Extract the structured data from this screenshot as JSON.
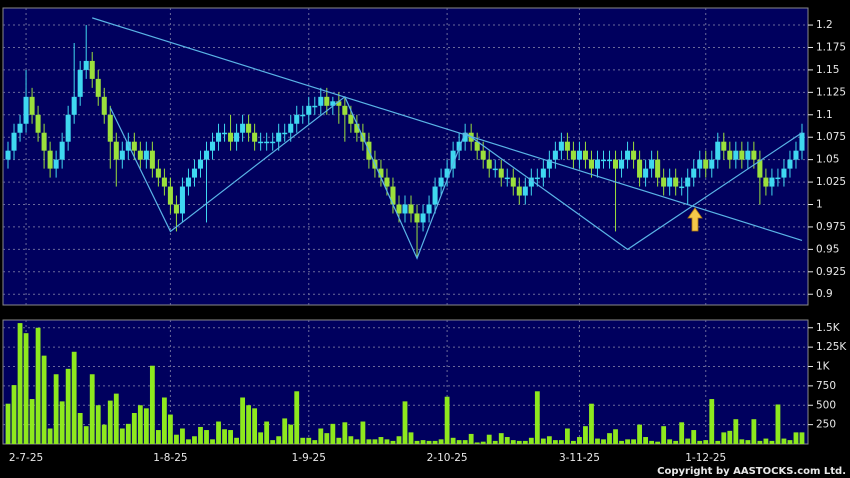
{
  "chart_data": [
    {
      "type": "candlestick",
      "up_color": "#3fd8f0",
      "down_color": "#9be03c",
      "grid": true,
      "ylim": [
        0.888,
        1.219
      ],
      "yticks": [
        0.9,
        0.925,
        0.95,
        0.975,
        1,
        1.025,
        1.05,
        1.075,
        1.1,
        1.125,
        1.15,
        1.175,
        1.2
      ],
      "open": [
        1.05,
        1.06,
        1.08,
        1.09,
        1.12,
        1.1,
        1.08,
        1.06,
        1.04,
        1.05,
        1.07,
        1.1,
        1.12,
        1.15,
        1.16,
        1.14,
        1.12,
        1.1,
        1.07,
        1.05,
        1.06,
        1.07,
        1.06,
        1.05,
        1.06,
        1.04,
        1.03,
        1.02,
        1.0,
        0.99,
        1.02,
        1.03,
        1.04,
        1.05,
        1.06,
        1.07,
        1.08,
        1.08,
        1.07,
        1.08,
        1.09,
        1.08,
        1.07,
        1.07,
        1.07,
        1.07,
        1.08,
        1.08,
        1.09,
        1.1,
        1.1,
        1.11,
        1.11,
        1.12,
        1.11,
        1.115,
        1.11,
        1.1,
        1.09,
        1.08,
        1.07,
        1.05,
        1.04,
        1.03,
        1.02,
        1.0,
        0.99,
        1.0,
        0.99,
        0.98,
        0.99,
        1.0,
        1.02,
        1.03,
        1.04,
        1.06,
        1.07,
        1.08,
        1.07,
        1.06,
        1.05,
        1.04,
        1.04,
        1.03,
        1.03,
        1.02,
        1.01,
        1.02,
        1.03,
        1.03,
        1.04,
        1.05,
        1.06,
        1.07,
        1.06,
        1.05,
        1.06,
        1.05,
        1.04,
        1.05,
        1.05,
        1.05,
        1.04,
        1.05,
        1.06,
        1.05,
        1.03,
        1.04,
        1.05,
        1.03,
        1.02,
        1.03,
        1.02,
        1.02,
        1.03,
        1.04,
        1.05,
        1.04,
        1.05,
        1.07,
        1.06,
        1.05,
        1.06,
        1.05,
        1.06,
        1.05,
        1.03,
        1.02,
        1.03,
        1.03,
        1.04,
        1.05,
        1.06
      ],
      "high": [
        1.07,
        1.09,
        1.1,
        1.15,
        1.13,
        1.11,
        1.09,
        1.07,
        1.06,
        1.08,
        1.11,
        1.18,
        1.16,
        1.2,
        1.17,
        1.15,
        1.13,
        1.11,
        1.08,
        1.07,
        1.08,
        1.08,
        1.07,
        1.07,
        1.07,
        1.05,
        1.04,
        1.03,
        1.01,
        1.03,
        1.04,
        1.05,
        1.06,
        1.07,
        1.08,
        1.09,
        1.09,
        1.1,
        1.09,
        1.1,
        1.1,
        1.09,
        1.08,
        1.08,
        1.08,
        1.09,
        1.09,
        1.1,
        1.11,
        1.11,
        1.12,
        1.12,
        1.13,
        1.13,
        1.12,
        1.125,
        1.12,
        1.11,
        1.1,
        1.09,
        1.08,
        1.06,
        1.05,
        1.04,
        1.03,
        1.01,
        1.01,
        1.01,
        1.0,
        1.0,
        1.01,
        1.03,
        1.04,
        1.05,
        1.07,
        1.08,
        1.09,
        1.09,
        1.08,
        1.07,
        1.06,
        1.05,
        1.05,
        1.04,
        1.04,
        1.03,
        1.03,
        1.04,
        1.04,
        1.05,
        1.06,
        1.07,
        1.08,
        1.08,
        1.07,
        1.07,
        1.07,
        1.06,
        1.06,
        1.06,
        1.06,
        1.06,
        1.06,
        1.07,
        1.07,
        1.06,
        1.05,
        1.06,
        1.06,
        1.04,
        1.04,
        1.04,
        1.03,
        1.04,
        1.05,
        1.06,
        1.06,
        1.06,
        1.08,
        1.08,
        1.07,
        1.07,
        1.07,
        1.07,
        1.07,
        1.06,
        1.04,
        1.04,
        1.04,
        1.05,
        1.06,
        1.07,
        1.09
      ],
      "low": [
        1.04,
        1.05,
        1.07,
        1.08,
        1.09,
        1.07,
        1.04,
        1.03,
        1.03,
        1.04,
        1.06,
        1.09,
        1.11,
        1.14,
        1.13,
        1.11,
        1.09,
        1.04,
        1.02,
        1.04,
        1.05,
        1.05,
        1.04,
        1.04,
        1.03,
        1.02,
        1.01,
        0.99,
        0.97,
        0.98,
        1.01,
        1.02,
        1.03,
        0.98,
        1.05,
        1.06,
        1.07,
        1.06,
        1.06,
        1.07,
        1.07,
        1.06,
        1.06,
        1.06,
        1.06,
        1.06,
        1.07,
        1.07,
        1.08,
        1.09,
        1.09,
        1.1,
        1.1,
        1.1,
        1.1,
        1.09,
        1.07,
        1.08,
        1.07,
        1.06,
        1.04,
        1.03,
        1.02,
        1.01,
        0.99,
        0.98,
        0.98,
        0.98,
        0.94,
        0.97,
        0.98,
        0.99,
        1.01,
        1.02,
        1.03,
        1.05,
        1.06,
        1.06,
        1.05,
        1.04,
        1.03,
        1.03,
        1.02,
        1.02,
        1.01,
        1.0,
        1.0,
        1.01,
        1.02,
        1.02,
        1.03,
        1.04,
        1.05,
        1.05,
        1.04,
        1.04,
        1.04,
        1.03,
        1.03,
        1.04,
        1.04,
        0.97,
        1.03,
        1.04,
        1.04,
        1.02,
        1.02,
        1.03,
        1.02,
        1.01,
        1.01,
        1.01,
        1.01,
        1.0,
        1.02,
        1.03,
        1.03,
        1.03,
        1.04,
        1.05,
        1.04,
        1.04,
        1.04,
        1.04,
        1.04,
        1.0,
        1.01,
        1.01,
        1.02,
        1.02,
        1.03,
        1.04,
        1.05
      ],
      "close": [
        1.06,
        1.08,
        1.09,
        1.12,
        1.1,
        1.08,
        1.06,
        1.04,
        1.05,
        1.07,
        1.1,
        1.12,
        1.15,
        1.16,
        1.14,
        1.12,
        1.1,
        1.07,
        1.05,
        1.06,
        1.07,
        1.06,
        1.05,
        1.06,
        1.04,
        1.03,
        1.02,
        1.0,
        0.99,
        1.02,
        1.03,
        1.04,
        1.05,
        1.06,
        1.07,
        1.08,
        1.08,
        1.07,
        1.08,
        1.09,
        1.08,
        1.07,
        1.07,
        1.07,
        1.07,
        1.08,
        1.08,
        1.09,
        1.1,
        1.1,
        1.11,
        1.11,
        1.12,
        1.11,
        1.115,
        1.11,
        1.1,
        1.09,
        1.08,
        1.07,
        1.05,
        1.04,
        1.03,
        1.02,
        1.0,
        0.99,
        1.0,
        0.99,
        0.98,
        0.99,
        1.0,
        1.02,
        1.03,
        1.04,
        1.06,
        1.07,
        1.08,
        1.07,
        1.06,
        1.05,
        1.04,
        1.04,
        1.03,
        1.03,
        1.02,
        1.01,
        1.02,
        1.03,
        1.03,
        1.04,
        1.05,
        1.06,
        1.07,
        1.06,
        1.05,
        1.06,
        1.05,
        1.04,
        1.05,
        1.05,
        1.05,
        1.04,
        1.05,
        1.06,
        1.05,
        1.03,
        1.04,
        1.05,
        1.03,
        1.02,
        1.03,
        1.02,
        1.02,
        1.03,
        1.04,
        1.05,
        1.04,
        1.05,
        1.07,
        1.06,
        1.05,
        1.06,
        1.05,
        1.06,
        1.05,
        1.03,
        1.02,
        1.03,
        1.03,
        1.04,
        1.05,
        1.06,
        1.08
      ],
      "trendlines": [
        {
          "color": "#5ab4e6",
          "x": [
            14,
            132
          ],
          "y": [
            1.208,
            0.96
          ]
        },
        {
          "color": "#5ab4e6",
          "x": [
            17,
            27,
            56,
            68,
            76,
            103,
            132
          ],
          "y": [
            1.108,
            0.97,
            1.12,
            0.94,
            1.08,
            0.95,
            1.08
          ]
        }
      ]
    },
    {
      "type": "bar",
      "color": "#8ee81e",
      "grid": true,
      "ylim": [
        0,
        1600
      ],
      "yticks": [
        250,
        500,
        750,
        {
          "value": 1000,
          "label": "1K"
        },
        {
          "value": 1250,
          "label": "1.25K"
        },
        {
          "value": 1500,
          "label": "1.5K"
        }
      ],
      "categories": [
        null,
        null,
        null,
        "2-7-25",
        null,
        null,
        null,
        null,
        null,
        null,
        null,
        null,
        null,
        null,
        null,
        null,
        null,
        null,
        null,
        null,
        null,
        null,
        null,
        null,
        null,
        null,
        null,
        "1-8-25",
        null,
        null,
        null,
        null,
        null,
        null,
        null,
        null,
        null,
        null,
        null,
        null,
        null,
        null,
        null,
        null,
        null,
        null,
        null,
        null,
        null,
        null,
        "1-9-25",
        null,
        null,
        null,
        null,
        null,
        null,
        null,
        null,
        null,
        null,
        null,
        null,
        null,
        null,
        null,
        null,
        null,
        null,
        null,
        null,
        null,
        null,
        "2-10-25",
        null,
        null,
        null,
        null,
        null,
        null,
        null,
        null,
        null,
        null,
        null,
        null,
        null,
        null,
        null,
        null,
        null,
        null,
        null,
        null,
        null,
        "3-11-25",
        null,
        null,
        null,
        null,
        null,
        null,
        null,
        null,
        null,
        null,
        null,
        null,
        null,
        null,
        null,
        null,
        null,
        null,
        null,
        null,
        "1-12-25",
        null,
        null,
        null,
        null,
        null,
        null,
        null,
        null,
        null,
        null,
        null,
        null,
        null,
        null,
        null,
        null
      ],
      "values": [
        520,
        760,
        1560,
        1430,
        580,
        1500,
        1140,
        200,
        900,
        550,
        970,
        1190,
        400,
        230,
        900,
        500,
        250,
        560,
        650,
        200,
        260,
        400,
        500,
        460,
        1010,
        180,
        600,
        380,
        120,
        200,
        60,
        100,
        220,
        180,
        60,
        290,
        190,
        180,
        80,
        600,
        500,
        460,
        150,
        290,
        50,
        100,
        330,
        250,
        680,
        80,
        80,
        50,
        200,
        140,
        260,
        80,
        280,
        100,
        60,
        290,
        60,
        60,
        90,
        60,
        40,
        100,
        550,
        150,
        40,
        50,
        40,
        40,
        60,
        610,
        80,
        50,
        50,
        130,
        20,
        30,
        120,
        40,
        140,
        90,
        50,
        40,
        40,
        80,
        680,
        70,
        100,
        50,
        50,
        200,
        40,
        90,
        230,
        520,
        70,
        60,
        140,
        190,
        40,
        60,
        60,
        250,
        90,
        40,
        30,
        230,
        60,
        40,
        280,
        70,
        180,
        40,
        50,
        580,
        40,
        150,
        170,
        320,
        60,
        50,
        320,
        40,
        70,
        40,
        510,
        70,
        50,
        150,
        150
      ]
    }
  ],
  "footer": "Copyright by AASTOCKS.com Ltd."
}
